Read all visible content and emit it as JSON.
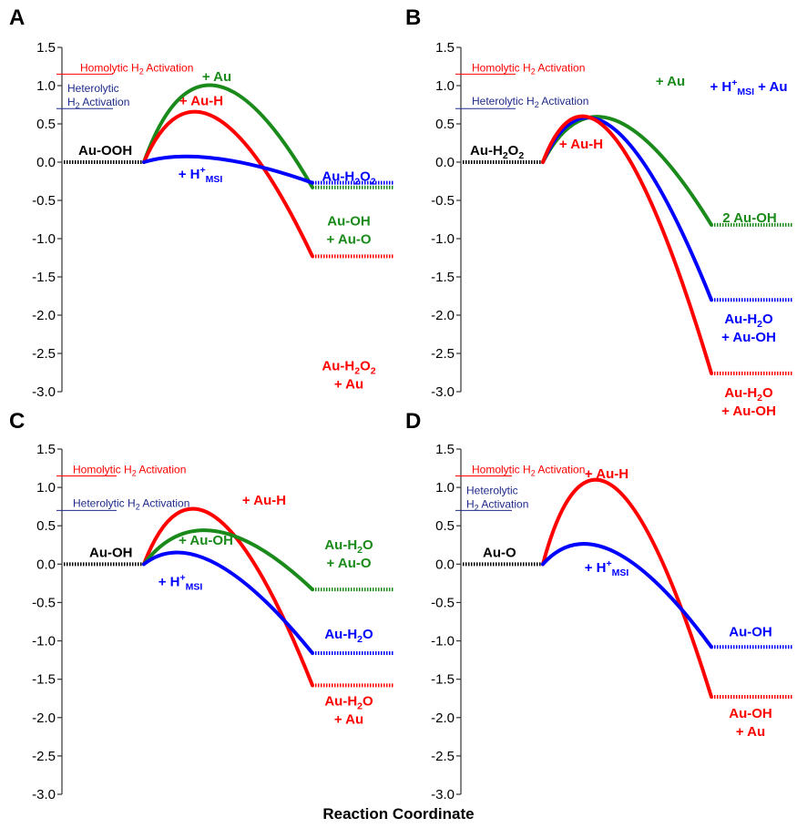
{
  "figure": {
    "xlabel": "Reaction Coordinate",
    "y_ticks": [
      "1.5",
      "1.0",
      "0.5",
      "0.0",
      "-0.5",
      "-1.0",
      "-1.5",
      "-2.0",
      "-2.5",
      "-3.0"
    ],
    "references": [
      {
        "label": "Homolytic H₂ Activation",
        "value": 1.15,
        "color": "#ff0000"
      },
      {
        "label": "Heterolytic H₂ Activation",
        "value": 0.7,
        "color": "#1f2a8a"
      }
    ]
  },
  "chart_data": [
    {
      "panel": "A",
      "type": "line",
      "ylim": [
        -3.0,
        1.5
      ],
      "start_label": "Au-OOH",
      "series": [
        {
          "name": "+ Au",
          "color": "#1a8a1a",
          "start": 0.0,
          "peak": 1.0,
          "end": -0.33,
          "label": "+ Au",
          "product": "Au-OH\n+ Au-O"
        },
        {
          "name": "+ Au-H",
          "color": "#ff0000",
          "start": 0.0,
          "peak": 0.58,
          "end": -1.23,
          "label": "+ Au-H",
          "product": "Au-H₂O₂\n+ Au"
        },
        {
          "name": "+ H⁺MSI",
          "color": "#0000ff",
          "start": 0.0,
          "peak": 0.05,
          "end": -0.27,
          "label": "+ H⁺MSI",
          "product": "Au-H₂O₂"
        }
      ]
    },
    {
      "panel": "B",
      "type": "line",
      "ylim": [
        -3.0,
        1.5
      ],
      "start_label": "Au-H₂O₂",
      "series": [
        {
          "name": "+ Au",
          "color": "#1a8a1a",
          "start": 0.0,
          "peak": 0.55,
          "end": -0.82,
          "label": "+ Au",
          "product": "2 Au-OH"
        },
        {
          "name": "+ H⁺MSI + Au",
          "color": "#0000ff",
          "start": 0.0,
          "peak": 0.43,
          "end": -1.8,
          "label": "+ H⁺MSI + Au",
          "product": "Au-H₂O\n+ Au-OH"
        },
        {
          "name": "+ Au-H",
          "color": "#ff0000",
          "start": 0.0,
          "peak": 0.32,
          "end": -2.76,
          "label": "+ Au-H",
          "product": "Au-H₂O\n+ Au-OH"
        }
      ]
    },
    {
      "panel": "C",
      "type": "line",
      "ylim": [
        -3.0,
        1.5
      ],
      "start_label": "Au-OH",
      "series": [
        {
          "name": "+ Au-H",
          "color": "#ff0000",
          "start": 0.0,
          "peak": 0.61,
          "end": -1.58,
          "label": "+ Au-H",
          "product": "Au-H₂O\n+ Au"
        },
        {
          "name": "+ Au-OH",
          "color": "#1a8a1a",
          "start": 0.0,
          "peak": 0.43,
          "end": -0.33,
          "label": "+ Au-OH",
          "product": "Au-H₂O\n+ Au-O"
        },
        {
          "name": "+ H⁺MSI",
          "color": "#0000ff",
          "start": 0.0,
          "peak": 0.01,
          "end": -1.16,
          "label": "+ H⁺MSI",
          "product": "Au-H₂O"
        }
      ]
    },
    {
      "panel": "D",
      "type": "line",
      "ylim": [
        -3.0,
        1.5
      ],
      "start_label": "Au-O",
      "series": [
        {
          "name": "+ Au-H",
          "color": "#ff0000",
          "start": 0.0,
          "peak": 1.0,
          "end": -1.73,
          "label": "+ Au-H",
          "product": "Au-OH\n+ Au"
        },
        {
          "name": "+ H⁺MSI",
          "color": "#0000ff",
          "start": 0.0,
          "peak": 0.16,
          "end": -1.08,
          "label": "+ H⁺MSI",
          "product": "Au-OH"
        }
      ]
    }
  ]
}
